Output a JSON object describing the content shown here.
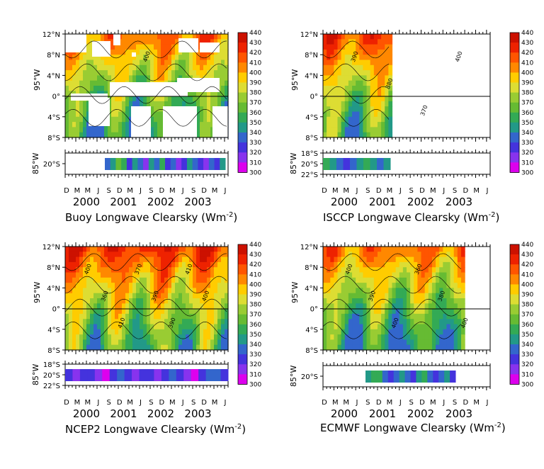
{
  "figure": {
    "colors": {
      "levels": [
        300,
        310,
        320,
        330,
        340,
        350,
        360,
        370,
        380,
        390,
        400,
        410,
        420,
        430,
        440
      ],
      "palette": [
        "#dd00ee",
        "#8833ee",
        "#4433dd",
        "#3366cc",
        "#229988",
        "#33aa55",
        "#66bb33",
        "#99cc33",
        "#dddd33",
        "#ffcc00",
        "#ff8800",
        "#ff5500",
        "#ee2200",
        "#cc1100",
        "#880000"
      ]
    },
    "time_axis": {
      "month_ticks": [
        "D",
        "M",
        "M",
        "J",
        "S",
        "D",
        "M",
        "J",
        "S",
        "D",
        "M",
        "J",
        "S",
        "D",
        "M",
        "J"
      ],
      "year_labels": [
        "2000",
        "2001",
        "2002",
        "2003"
      ]
    }
  },
  "chart_data": [
    {
      "type": "heatmap",
      "title": "Buoy Longwave Clearsky (Wm",
      "title_sup": "-2",
      "title_end": ")",
      "top_ylabel": "95°W",
      "top_yticks": [
        "12°N",
        "8°N",
        "4°N",
        "0°",
        "4°S",
        "8°S"
      ],
      "bottom_ylabel": "85°W",
      "bottom_yticks": [
        "20°S"
      ],
      "contour_labels": [
        "400"
      ],
      "strip_values": [
        330,
        340,
        360,
        350,
        320,
        340,
        330,
        310,
        340,
        330,
        350,
        320,
        330,
        310,
        320,
        340,
        330,
        320,
        310,
        330,
        320,
        340
      ]
    },
    {
      "type": "heatmap",
      "title": "ISCCP Longwave Clearsky (Wm",
      "title_sup": "-2",
      "title_end": ")",
      "top_ylabel": "95°W",
      "top_yticks": [
        "12°N",
        "8°N",
        "4°N",
        "0°",
        "4°S",
        "8°S"
      ],
      "bottom_ylabel": "85°W",
      "bottom_yticks": [
        "18°S",
        "20°S",
        "22°S"
      ],
      "contour_labels": [
        "390",
        "380",
        "370",
        "400"
      ],
      "strip_values": [
        350,
        340,
        330,
        320,
        330,
        340,
        350,
        340,
        330,
        340
      ]
    },
    {
      "type": "heatmap",
      "title": "NCEP2 Longwave Clearsky (Wm",
      "title_sup": "-2",
      "title_end": ")",
      "top_ylabel": "95°W",
      "top_yticks": [
        "12°N",
        "8°N",
        "4°N",
        "0°",
        "4°S",
        "8°S"
      ],
      "bottom_ylabel": "85°W",
      "bottom_yticks": [
        "18°S",
        "20°S",
        "22°S"
      ],
      "contour_labels": [
        "400",
        "360",
        "410",
        "370",
        "390",
        "390",
        "410",
        "400"
      ],
      "strip_values": [
        320,
        310,
        320,
        320,
        310,
        300,
        320,
        330,
        320,
        310,
        320,
        320,
        310,
        320,
        330,
        320,
        310,
        300,
        320,
        330,
        330,
        320
      ]
    },
    {
      "type": "heatmap",
      "title": "ECMWF Longwave Clearsky (Wm",
      "title_sup": "-2",
      "title_end": ")",
      "top_ylabel": "95°W",
      "top_yticks": [
        "12°N",
        "8°N",
        "4°N",
        "0°",
        "4°S",
        "8°S"
      ],
      "bottom_ylabel": "85°W",
      "bottom_yticks": [
        "20°S"
      ],
      "contour_labels": [
        "400",
        "390",
        "400",
        "360",
        "380",
        "400"
      ],
      "strip_values": [
        340,
        350,
        350,
        330,
        320,
        330,
        340,
        330,
        320,
        340,
        350,
        330,
        320,
        330,
        340,
        320
      ]
    }
  ]
}
